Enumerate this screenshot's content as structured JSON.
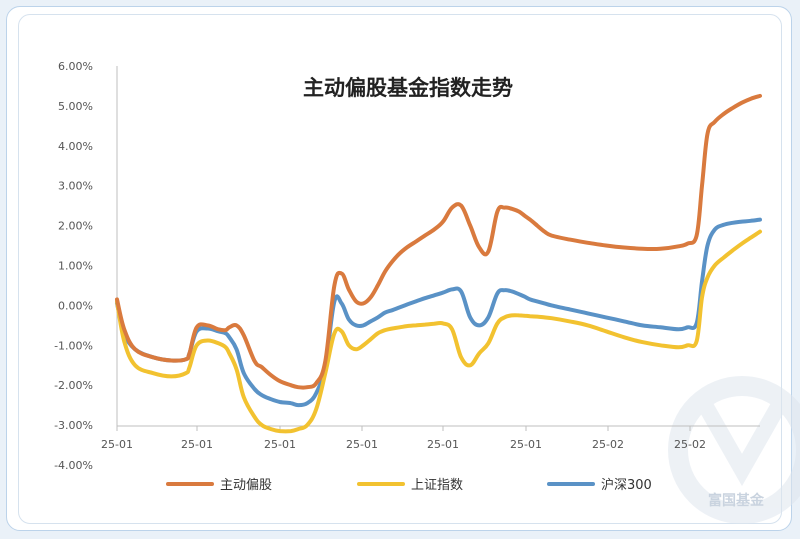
{
  "chart_data": {
    "type": "line",
    "title": "主动偏股基金指数走势",
    "xlabel": "",
    "ylabel": "",
    "x_tick_labels": [
      "25-01",
      "25-01",
      "25-01",
      "25-01",
      "25-01",
      "25-01",
      "25-02",
      "25-02"
    ],
    "y_tick_labels": [
      "6.00%",
      "5.00%",
      "4.00%",
      "3.00%",
      "2.00%",
      "1.00%",
      "0.00%",
      "-1.00%",
      "-2.00%",
      "-3.00%",
      "-4.00%"
    ],
    "ylim": [
      -4,
      6
    ],
    "xlim": [
      0,
      35.5
    ],
    "grid": false,
    "legend_position": "bottom",
    "series": [
      {
        "name": "主动偏股",
        "color": "#d97a3e",
        "x": [
          0,
          0.4,
          1,
          2,
          3,
          3.8,
          4,
          4.4,
          5,
          5.6,
          6,
          6.2,
          6.6,
          7,
          7.6,
          8,
          8.5,
          9,
          9.6,
          10,
          10.5,
          11,
          11.5,
          12,
          12.4,
          12.8,
          13.2,
          13.6,
          14,
          14.4,
          14.8,
          15.2,
          15.6,
          16,
          16.5,
          17,
          17.5,
          18,
          18.5,
          19,
          19.5,
          20,
          20.5,
          21,
          21.4,
          21.8,
          22.2,
          22.5,
          22.8,
          23.2,
          23.6,
          24,
          25,
          26,
          27,
          28,
          29,
          30,
          31,
          31.5,
          32,
          32.3,
          32.6,
          33,
          33.5,
          34,
          34.5,
          35,
          35.5
        ],
        "values": [
          0.15,
          -0.6,
          -1.1,
          -1.3,
          -1.38,
          -1.35,
          -1.2,
          -0.55,
          -0.5,
          -0.6,
          -0.62,
          -0.55,
          -0.5,
          -0.75,
          -1.4,
          -1.55,
          -1.75,
          -1.9,
          -2.0,
          -2.05,
          -2.05,
          -1.95,
          -1.4,
          0.5,
          0.8,
          0.4,
          0.1,
          0.05,
          0.2,
          0.5,
          0.85,
          1.1,
          1.3,
          1.45,
          1.6,
          1.75,
          1.9,
          2.1,
          2.45,
          2.5,
          2.0,
          1.45,
          1.35,
          2.35,
          2.45,
          2.42,
          2.35,
          2.25,
          2.15,
          2.0,
          1.85,
          1.75,
          1.65,
          1.57,
          1.5,
          1.45,
          1.42,
          1.42,
          1.48,
          1.55,
          1.75,
          3.0,
          4.3,
          4.6,
          4.8,
          4.95,
          5.08,
          5.18,
          5.25
        ]
      },
      {
        "name": "上证指数",
        "color": "#f2c230",
        "x": [
          0,
          0.4,
          1,
          2,
          3,
          3.8,
          4,
          4.4,
          5,
          5.6,
          6,
          6.2,
          6.6,
          7,
          7.6,
          8,
          8.5,
          9,
          9.6,
          10,
          10.5,
          11,
          11.5,
          12,
          12.4,
          12.8,
          13.2,
          13.6,
          14,
          14.4,
          14.8,
          15.2,
          15.6,
          16,
          16.5,
          17,
          17.5,
          18,
          18.5,
          19,
          19.5,
          20,
          20.5,
          21,
          21.4,
          21.8,
          22.2,
          22.5,
          22.8,
          23.2,
          23.6,
          24,
          25,
          26,
          27,
          28,
          29,
          30,
          31,
          31.5,
          32,
          32.3,
          32.6,
          33,
          33.5,
          34,
          34.5,
          35,
          35.5
        ],
        "values": [
          0.1,
          -0.9,
          -1.5,
          -1.7,
          -1.78,
          -1.7,
          -1.55,
          -1.0,
          -0.88,
          -0.95,
          -1.05,
          -1.2,
          -1.6,
          -2.3,
          -2.8,
          -3.0,
          -3.1,
          -3.15,
          -3.15,
          -3.1,
          -3.0,
          -2.6,
          -1.7,
          -0.7,
          -0.65,
          -1.0,
          -1.1,
          -1.0,
          -0.85,
          -0.7,
          -0.62,
          -0.58,
          -0.55,
          -0.52,
          -0.5,
          -0.48,
          -0.46,
          -0.45,
          -0.6,
          -1.3,
          -1.5,
          -1.2,
          -0.95,
          -0.45,
          -0.3,
          -0.25,
          -0.25,
          -0.26,
          -0.27,
          -0.28,
          -0.3,
          -0.32,
          -0.4,
          -0.5,
          -0.65,
          -0.8,
          -0.92,
          -1.0,
          -1.05,
          -1.0,
          -0.9,
          0.2,
          0.7,
          1.0,
          1.2,
          1.38,
          1.55,
          1.7,
          1.85
        ]
      },
      {
        "name": "沪深300",
        "color": "#5a92c6",
        "x": [
          0,
          0.4,
          1,
          2,
          3,
          3.8,
          4,
          4.4,
          5,
          5.6,
          6,
          6.2,
          6.6,
          7,
          7.6,
          8,
          8.5,
          9,
          9.6,
          10,
          10.5,
          11,
          11.5,
          12,
          12.4,
          12.8,
          13.2,
          13.6,
          14,
          14.4,
          14.8,
          15.2,
          15.6,
          16,
          16.5,
          17,
          17.5,
          18,
          18.5,
          19,
          19.5,
          20,
          20.5,
          21,
          21.4,
          21.8,
          22.2,
          22.5,
          22.8,
          23.2,
          23.6,
          24,
          25,
          26,
          27,
          28,
          29,
          30,
          31,
          31.5,
          32,
          32.3,
          32.6,
          33,
          33.5,
          34,
          34.5,
          35,
          35.5
        ],
        "values": [
          0.05,
          -0.7,
          -1.1,
          -1.3,
          -1.38,
          -1.35,
          -1.2,
          -0.65,
          -0.58,
          -0.65,
          -0.7,
          -0.8,
          -1.1,
          -1.7,
          -2.1,
          -2.25,
          -2.35,
          -2.42,
          -2.45,
          -2.5,
          -2.45,
          -2.2,
          -1.5,
          0.1,
          0.05,
          -0.35,
          -0.5,
          -0.5,
          -0.4,
          -0.3,
          -0.18,
          -0.12,
          -0.05,
          0.02,
          0.1,
          0.18,
          0.25,
          0.32,
          0.4,
          0.35,
          -0.3,
          -0.5,
          -0.3,
          0.3,
          0.38,
          0.35,
          0.28,
          0.22,
          0.15,
          0.1,
          0.05,
          0.0,
          -0.1,
          -0.2,
          -0.3,
          -0.4,
          -0.5,
          -0.55,
          -0.6,
          -0.55,
          -0.45,
          0.6,
          1.5,
          1.9,
          2.02,
          2.07,
          2.1,
          2.12,
          2.15
        ]
      }
    ]
  },
  "watermark": {
    "text": "富国基金",
    "color": "#c9d3df"
  }
}
